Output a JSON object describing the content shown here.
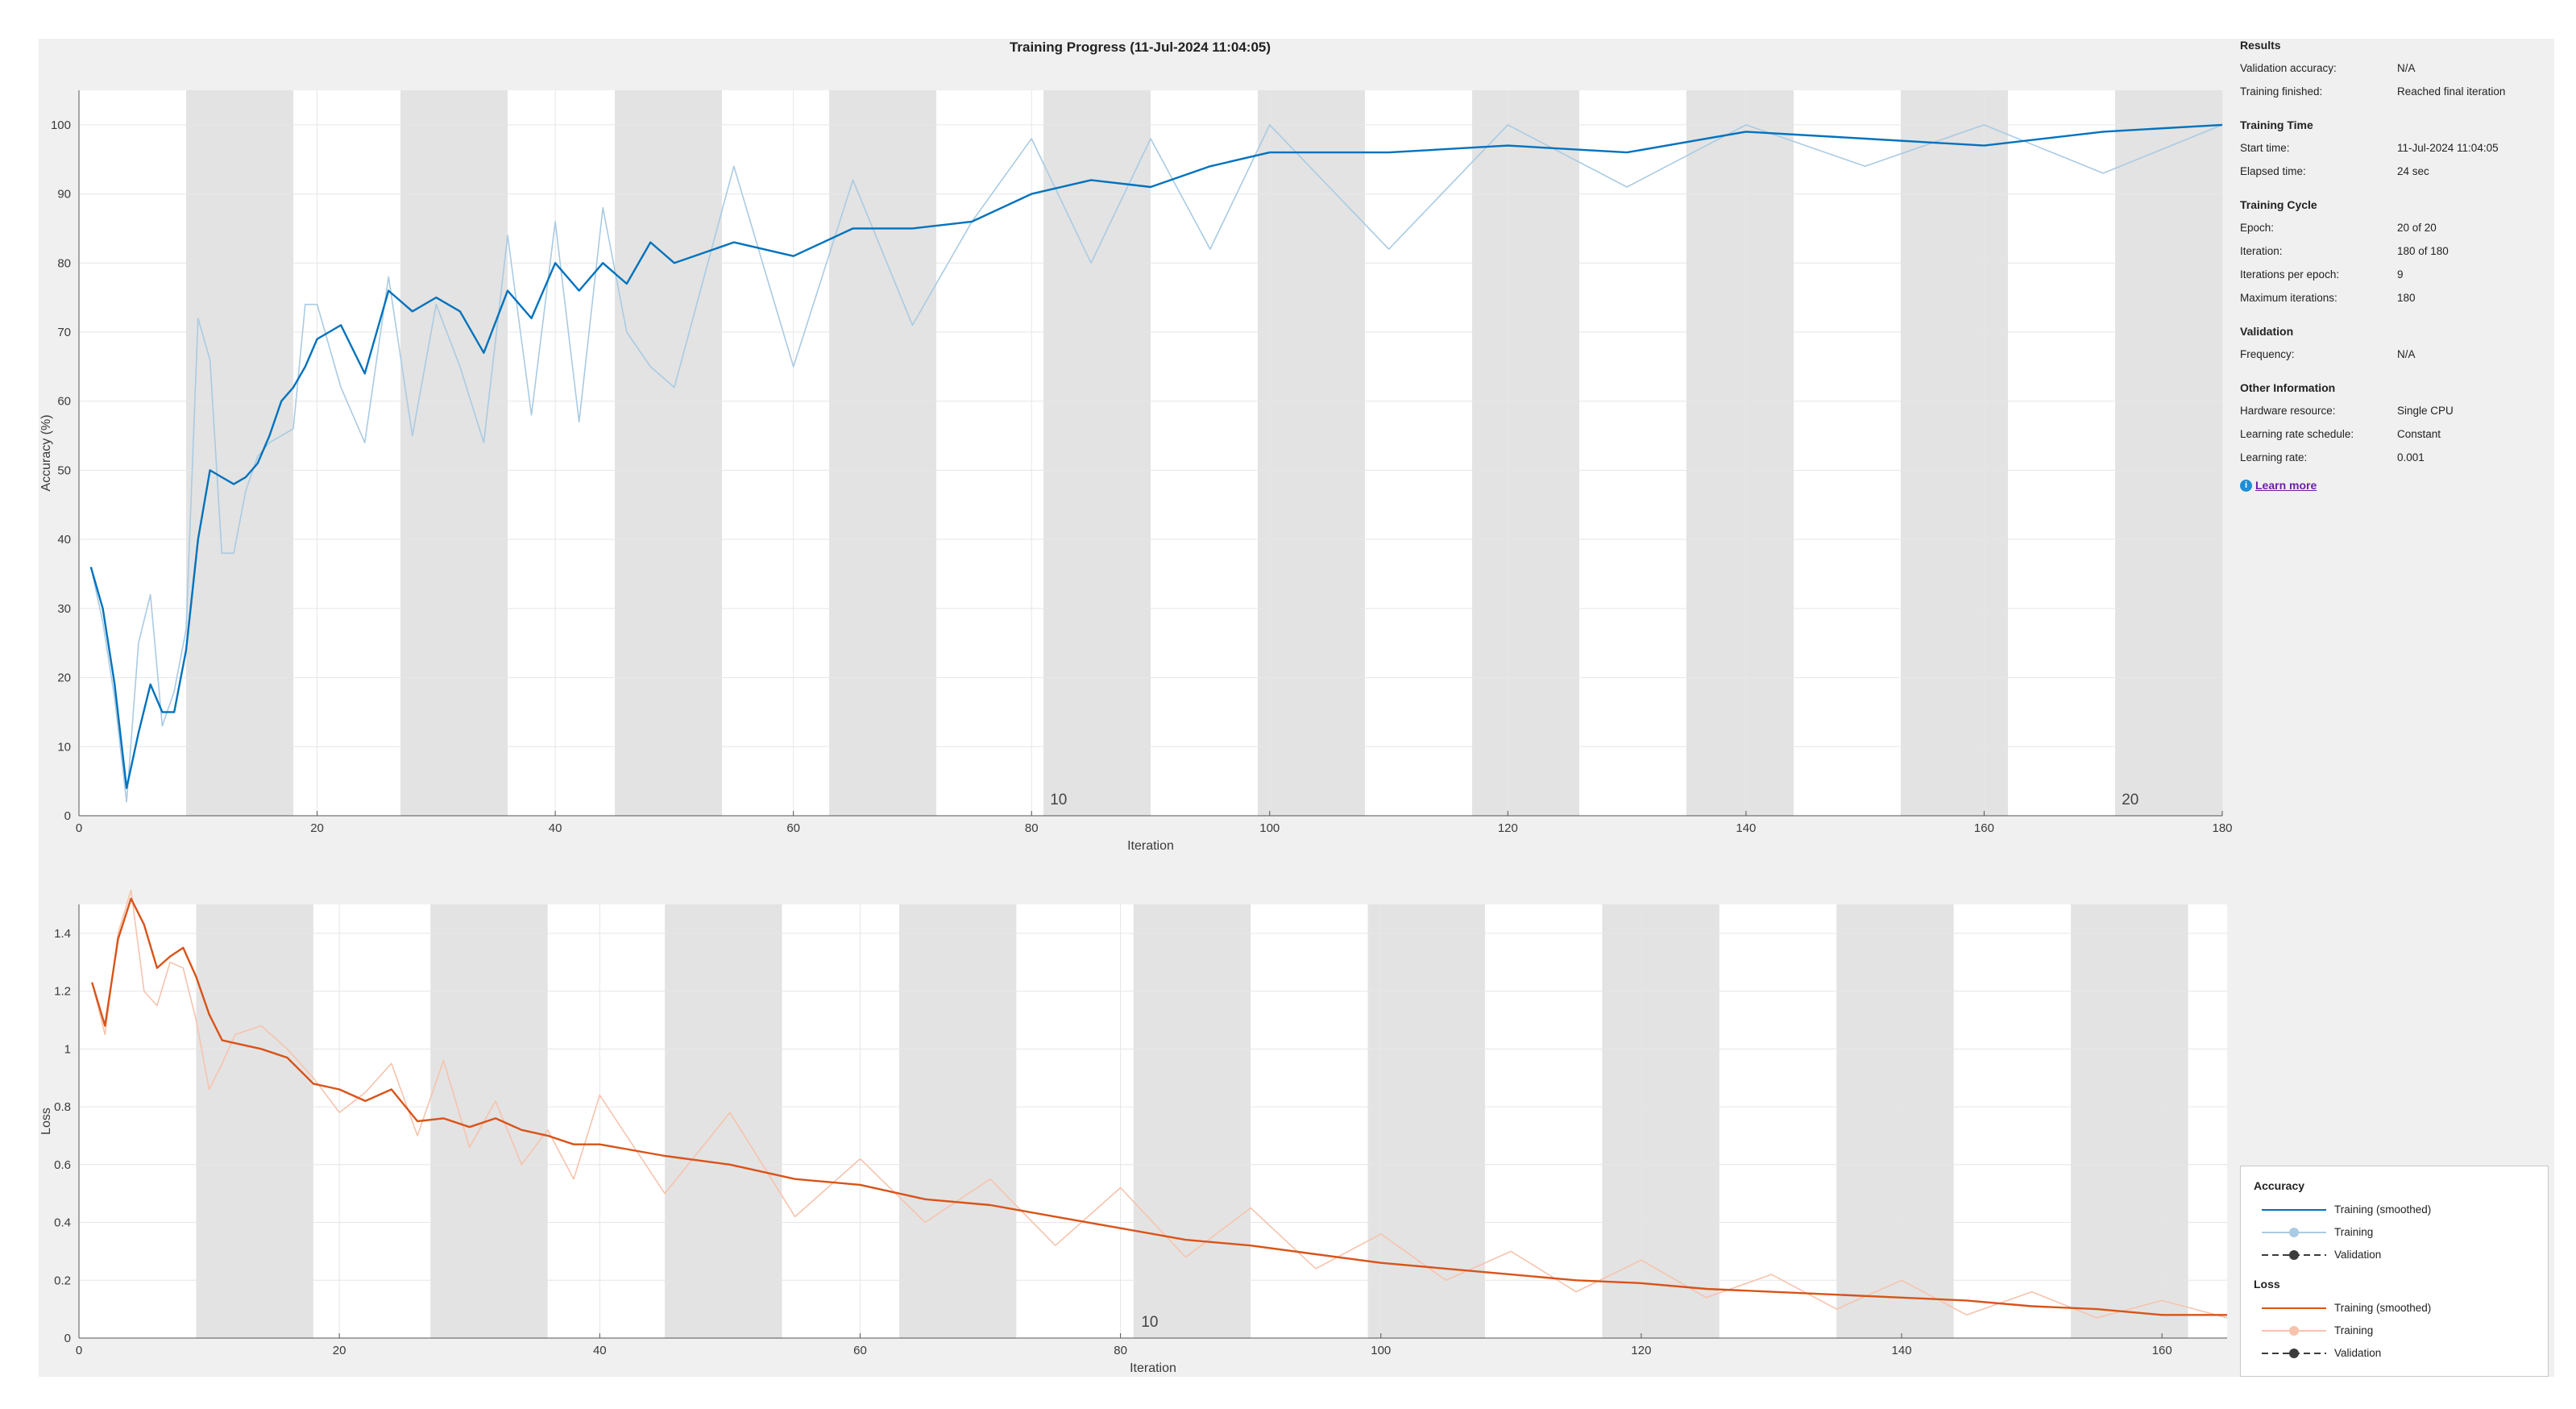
{
  "window": {
    "title": "Training Progress (11-Jul-2024 11:04:05)"
  },
  "info": {
    "sections": [
      {
        "title": "Results",
        "rows": [
          {
            "label": "Validation accuracy:",
            "value": "N/A"
          },
          {
            "label": "Training finished:",
            "value": "Reached final iteration"
          }
        ]
      },
      {
        "title": "Training Time",
        "rows": [
          {
            "label": "Start time:",
            "value": "11-Jul-2024 11:04:05"
          },
          {
            "label": "Elapsed time:",
            "value": "24 sec"
          }
        ]
      },
      {
        "title": "Training Cycle",
        "rows": [
          {
            "label": "Epoch:",
            "value": "20 of 20"
          },
          {
            "label": "Iteration:",
            "value": "180 of 180"
          },
          {
            "label": "Iterations per epoch:",
            "value": "9"
          },
          {
            "label": "Maximum iterations:",
            "value": "180"
          }
        ]
      },
      {
        "title": "Validation",
        "rows": [
          {
            "label": "Frequency:",
            "value": "N/A"
          }
        ]
      },
      {
        "title": "Other Information",
        "rows": [
          {
            "label": "Hardware resource:",
            "value": "Single CPU"
          },
          {
            "label": "Learning rate schedule:",
            "value": "Constant"
          },
          {
            "label": "Learning rate:",
            "value": "0.001"
          }
        ]
      }
    ],
    "learn_more": "Learn more",
    "learn_icon": "info-icon"
  },
  "legend": {
    "groups": [
      {
        "title": "Accuracy",
        "items": [
          "Training (smoothed)",
          "Training",
          "Validation"
        ]
      },
      {
        "title": "Loss",
        "items": [
          "Training (smoothed)",
          "Training",
          "Validation"
        ]
      }
    ]
  },
  "colors": {
    "acc_smoothed": "#0072bd",
    "acc_raw": "#a9cbe3",
    "loss_smoothed": "#d95319",
    "loss_raw": "#f6c3ad",
    "epoch_band": "#e3e3e3",
    "grid": "#e6e6e6",
    "validation": "#3c3c3c"
  },
  "chart_data": [
    {
      "type": "line",
      "title": "Training Progress (11-Jul-2024 11:04:05)",
      "xlabel": "Iteration",
      "ylabel": "Accuracy (%)",
      "xlim": [
        0,
        180
      ],
      "ylim": [
        0,
        105
      ],
      "xticks": [
        0,
        20,
        40,
        60,
        80,
        100,
        120,
        140,
        160,
        180
      ],
      "yticks": [
        0,
        10,
        20,
        30,
        40,
        50,
        60,
        70,
        80,
        90,
        100
      ],
      "grid": true,
      "iterations_per_epoch": 9,
      "epoch_labels": [
        {
          "epoch": "10",
          "at": 82
        },
        {
          "epoch": "20",
          "at": 172
        }
      ],
      "series": [
        {
          "name": "Training (smoothed)",
          "role": "smoothed",
          "x": [
            1,
            2,
            3,
            4,
            5,
            6,
            7,
            8,
            9,
            10,
            11,
            12,
            13,
            14,
            15,
            16,
            17,
            18,
            19,
            20,
            22,
            24,
            26,
            28,
            30,
            32,
            34,
            36,
            38,
            40,
            42,
            44,
            46,
            48,
            50,
            55,
            60,
            65,
            70,
            75,
            80,
            85,
            90,
            95,
            100,
            110,
            120,
            130,
            140,
            150,
            160,
            170,
            180
          ],
          "y": [
            36,
            30,
            19,
            4,
            12,
            19,
            15,
            15,
            24,
            40,
            50,
            49,
            48,
            49,
            51,
            55,
            60,
            62,
            65,
            69,
            71,
            64,
            76,
            73,
            75,
            73,
            67,
            76,
            72,
            80,
            76,
            80,
            77,
            83,
            80,
            83,
            81,
            85,
            85,
            86,
            90,
            92,
            91,
            94,
            96,
            96,
            97,
            96,
            99,
            98,
            97,
            99,
            100
          ]
        },
        {
          "name": "Training",
          "role": "raw",
          "x": [
            1,
            2,
            3,
            4,
            5,
            6,
            7,
            8,
            9,
            10,
            11,
            12,
            13,
            14,
            15,
            16,
            17,
            18,
            19,
            20,
            22,
            24,
            26,
            28,
            30,
            32,
            34,
            36,
            38,
            40,
            42,
            44,
            46,
            48,
            50,
            55,
            60,
            65,
            70,
            75,
            80,
            85,
            90,
            95,
            100,
            110,
            120,
            130,
            140,
            150,
            160,
            170,
            180
          ],
          "y": [
            36,
            28,
            17,
            2,
            25,
            32,
            13,
            18,
            27,
            72,
            66,
            38,
            38,
            47,
            52,
            54,
            55,
            56,
            74,
            74,
            62,
            54,
            78,
            55,
            74,
            65,
            54,
            84,
            58,
            86,
            57,
            88,
            70,
            65,
            62,
            94,
            65,
            92,
            71,
            86,
            98,
            80,
            98,
            82,
            100,
            82,
            100,
            91,
            100,
            94,
            100,
            93,
            100
          ]
        }
      ]
    },
    {
      "type": "line",
      "xlabel": "Iteration",
      "ylabel": "Loss",
      "xlim": [
        0,
        165
      ],
      "ylim": [
        0,
        1.5
      ],
      "xticks": [
        0,
        20,
        40,
        60,
        80,
        100,
        120,
        140,
        160
      ],
      "yticks": [
        0,
        0.2,
        0.4,
        0.6,
        0.8,
        1,
        1.2,
        1.4
      ],
      "ytick_labels": [
        "0",
        "0.2",
        "0.4",
        "0.6",
        "0.8",
        "1",
        "1.2",
        "1.4"
      ],
      "grid": true,
      "iterations_per_epoch": 9,
      "epoch_labels": [
        {
          "epoch": "10",
          "at": 82
        }
      ],
      "series": [
        {
          "name": "Training (smoothed)",
          "role": "smoothed",
          "x": [
            1,
            2,
            3,
            4,
            5,
            6,
            7,
            8,
            9,
            10,
            11,
            12,
            14,
            16,
            18,
            20,
            22,
            24,
            26,
            28,
            30,
            32,
            34,
            36,
            38,
            40,
            45,
            50,
            55,
            60,
            65,
            70,
            75,
            80,
            85,
            90,
            95,
            100,
            105,
            110,
            115,
            120,
            125,
            130,
            135,
            140,
            145,
            150,
            155,
            160,
            165
          ],
          "y": [
            1.23,
            1.08,
            1.38,
            1.52,
            1.43,
            1.28,
            1.32,
            1.35,
            1.25,
            1.12,
            1.03,
            1.02,
            1.0,
            0.97,
            0.88,
            0.86,
            0.82,
            0.86,
            0.75,
            0.76,
            0.73,
            0.76,
            0.72,
            0.7,
            0.67,
            0.67,
            0.63,
            0.6,
            0.55,
            0.53,
            0.48,
            0.46,
            0.42,
            0.38,
            0.34,
            0.32,
            0.29,
            0.26,
            0.24,
            0.22,
            0.2,
            0.19,
            0.17,
            0.16,
            0.15,
            0.14,
            0.13,
            0.11,
            0.1,
            0.08,
            0.08
          ]
        },
        {
          "name": "Training",
          "role": "raw",
          "x": [
            1,
            2,
            3,
            4,
            5,
            6,
            7,
            8,
            9,
            10,
            11,
            12,
            14,
            16,
            18,
            20,
            22,
            24,
            26,
            28,
            30,
            32,
            34,
            36,
            38,
            40,
            45,
            50,
            55,
            60,
            65,
            70,
            75,
            80,
            85,
            90,
            95,
            100,
            105,
            110,
            115,
            120,
            125,
            130,
            135,
            140,
            145,
            150,
            155,
            160,
            165
          ],
          "y": [
            1.23,
            1.05,
            1.4,
            1.55,
            1.2,
            1.15,
            1.3,
            1.28,
            1.1,
            0.86,
            0.95,
            1.05,
            1.08,
            1.0,
            0.9,
            0.78,
            0.85,
            0.95,
            0.7,
            0.96,
            0.66,
            0.82,
            0.6,
            0.72,
            0.55,
            0.84,
            0.5,
            0.78,
            0.42,
            0.62,
            0.4,
            0.55,
            0.32,
            0.52,
            0.28,
            0.45,
            0.24,
            0.36,
            0.2,
            0.3,
            0.16,
            0.27,
            0.14,
            0.22,
            0.1,
            0.2,
            0.08,
            0.16,
            0.07,
            0.13,
            0.07
          ]
        }
      ]
    }
  ]
}
